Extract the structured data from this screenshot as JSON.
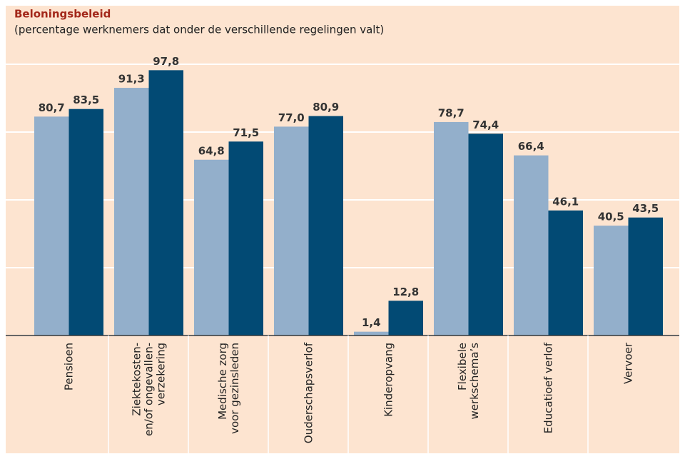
{
  "chart_data": {
    "type": "bar",
    "title": "Beloningsbeleid",
    "subtitle": "(percentage werknemers dat onder de verschillende regelingen valt)",
    "categories": [
      "Pensioen",
      "Ziektekosten-\nen/of ongevallen-\nverzekering",
      "Medische zorg\nvoor gezinsleden",
      "Ouderschapsverlof",
      "Kinderopvang",
      "Flexibele\nwerkschema’s",
      "Educatioef verlof",
      "Vervoer"
    ],
    "series": [
      {
        "color": "#93afcb",
        "values": [
          80.7,
          91.3,
          64.8,
          77.0,
          1.4,
          78.7,
          66.4,
          40.5
        ],
        "value_labels": [
          "80,7",
          "91,3",
          "64,8",
          "77,0",
          "1,4",
          "78,7",
          "66,4",
          "40,5"
        ]
      },
      {
        "color": "#024a74",
        "values": [
          83.5,
          97.8,
          71.5,
          80.9,
          12.8,
          74.4,
          46.1,
          43.5
        ],
        "value_labels": [
          "83,5",
          "97,8",
          "71,5",
          "80,9",
          "12,8",
          "74,4",
          "46,1",
          "43,5"
        ]
      }
    ],
    "ylim": [
      0,
      100
    ],
    "yticks": [
      0,
      25,
      50,
      75,
      100
    ],
    "grid": true
  }
}
